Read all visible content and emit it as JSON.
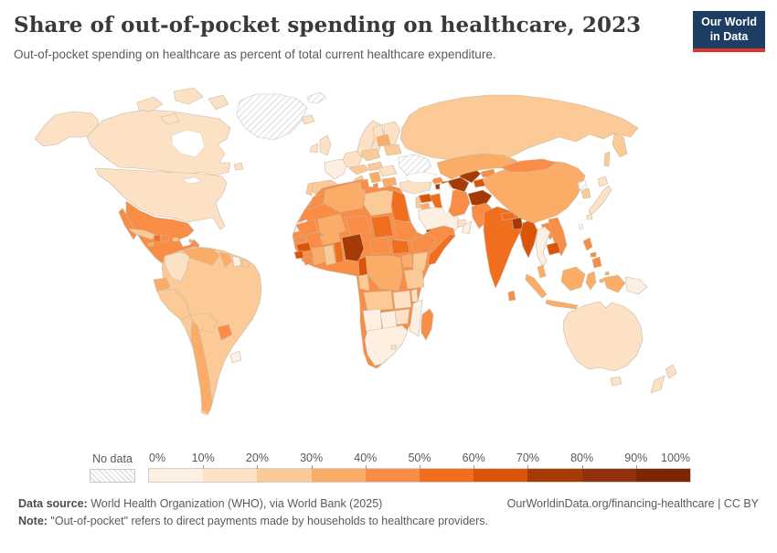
{
  "header": {
    "title": "Share of out-of-pocket spending on healthcare, 2023",
    "subtitle": "Out-of-pocket spending on healthcare as percent of total current healthcare expenditure.",
    "logo": {
      "line1": "Our World",
      "line2": "in Data",
      "bg": "#1d3d63",
      "stripe": "#dc352c"
    }
  },
  "legend": {
    "no_data_label": "No data",
    "tick_labels": [
      "0%",
      "10%",
      "20%",
      "30%",
      "40%",
      "50%",
      "60%",
      "70%",
      "80%",
      "90%",
      "100%"
    ]
  },
  "footer": {
    "source_label": "Data source:",
    "source_text": " World Health Organization (WHO), via World Bank (2025)",
    "rights": "OurWorldinData.org/financing-healthcare | CC BY",
    "note_label": "Note:",
    "note_text": " \"Out-of-pocket\" refers to direct payments made by households to healthcare providers."
  },
  "chart_data": {
    "type": "choropleth",
    "title": "Share of out-of-pocket spending on healthcare, 2023",
    "unit": "% of total current healthcare expenditure",
    "bins": [
      "0-10%",
      "10-20%",
      "20-30%",
      "30-40%",
      "40-50%",
      "50-60%",
      "60-70%",
      "70-80%",
      "80-90%",
      "90-100%"
    ],
    "bin_colors": [
      "#fdf0e2",
      "#fce1c5",
      "#fbca97",
      "#fbad67",
      "#f98d45",
      "#f06e1d",
      "#dc5408",
      "#a63a04",
      "#93300d",
      "#7c2604"
    ],
    "border_color": "#c9b8a3",
    "no_data_border": "#c6c6c6",
    "country_bins": {
      "canada": 1,
      "united-states": 1,
      "greenland": null,
      "iceland": 1,
      "mexico": 4,
      "guatemala": 5,
      "honduras": 4,
      "nicaragua": 4,
      "costa-rica": 2,
      "panama": 2,
      "cuba": 2,
      "jamaica": 3,
      "haiti": 5,
      "dominican-republic": 4,
      "puerto-rico": 2,
      "lesser-antilles": 3,
      "trinidad-and-tobago": 3,
      "colombia": 1,
      "venezuela": 3,
      "guyana": 3,
      "suriname": 0,
      "french-guiana": 2,
      "ecuador": 3,
      "peru": 2,
      "brazil": 2,
      "bolivia": 2,
      "paraguay": 4,
      "chile": 3,
      "uruguay": 0,
      "norway": 1,
      "sweden": 1,
      "finland": 1,
      "denmark": 1,
      "united-kingdom": 1,
      "ireland": 1,
      "france": 0,
      "spain": 2,
      "portugal": 2,
      "germany": 1,
      "poland": 2,
      "czechia": 2,
      "italy": 2,
      "lithuania": 3,
      "belarus": 2,
      "hungary": 2,
      "romania": 1,
      "serbia": 3,
      "albania": 4,
      "greece": 3,
      "bulgaria": 3,
      "ukraine": null,
      "russia": 2,
      "svalbard": null,
      "turkey": 1,
      "georgia": 4,
      "armenia": 7,
      "azerbaijan": 6,
      "syria": 6,
      "israel": 2,
      "jordan": 3,
      "iraq": 5,
      "saudi-arabia": 0,
      "united-arab-emirates": 1,
      "oman": 0,
      "yemen": 7,
      "iran": 4,
      "turkmenistan": 7,
      "uzbekistan": 7,
      "tajikistan": 6,
      "kyrgyzstan": 4,
      "kazakhstan": 3,
      "afghanistan": 7,
      "pakistan": 4,
      "india": 5,
      "nepal": 5,
      "bangladesh": 7,
      "sri-lanka": 4,
      "myanmar": 6,
      "china": 3,
      "mongolia": 4,
      "north-korea": null,
      "south-korea": 2,
      "japan": 1,
      "taiwan": null,
      "thailand": 0,
      "laos": 4,
      "vietnam": 4,
      "cambodia": 6,
      "malaysia": 3,
      "indonesia": 3,
      "philippines": 4,
      "papua-new-guinea": 0,
      "australia": 1,
      "new-zealand": 1,
      "africa-other": 4,
      "morocco": 4,
      "algeria": 3,
      "tunisia": 4,
      "libya": 2,
      "egypt": 5,
      "mauritania": 4,
      "mali": 3,
      "niger": 4,
      "chad": 5,
      "sudan": 4,
      "senegal": 4,
      "guinea": 6,
      "sierra-leone": 6,
      "liberia": 4,
      "ivory-coast": 3,
      "ghana": 2,
      "togo": 5,
      "burkina-faso": 3,
      "nigeria": 7,
      "cameroon": 6,
      "central-african-republic": 4,
      "south-sudan": 5,
      "ethiopia": 4,
      "somalia": 5,
      "kenya": 2,
      "uganda": 3,
      "tanzania": 2,
      "drc": 3,
      "congo": 2,
      "angola": 2,
      "zambia": 1,
      "malawi": 1,
      "mozambique": 0,
      "zimbabwe": 1,
      "botswana": 0,
      "namibia": 0,
      "south-africa": 0,
      "lesotho": 1,
      "madagascar": 4,
      "western-sahara": null
    }
  }
}
